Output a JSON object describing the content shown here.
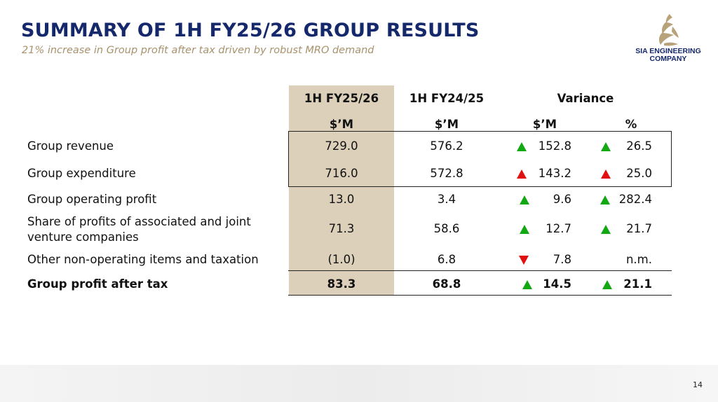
{
  "header": {
    "title": "SUMMARY OF 1H FY25/26 GROUP RESULTS",
    "subtitle": "21% increase in Group profit after tax driven by robust MRO demand"
  },
  "logo": {
    "text_line1": "SIA ENGINEERING",
    "text_line2": "COMPANY",
    "brand_color": "#14286b",
    "mark_color": "#b8a27a"
  },
  "table": {
    "columns": {
      "current": "1H FY25/26",
      "prior": "1H FY24/25",
      "variance": "Variance"
    },
    "units": {
      "current": "$’M",
      "prior": "$’M",
      "var_amount": "$’M",
      "var_pct": "%"
    },
    "rows": [
      {
        "label": "Group revenue",
        "current": "729.0",
        "prior": "576.2",
        "var_amount": "152.8",
        "var_pct": "26.5",
        "amount_trend": "up-green",
        "pct_trend": "up-green"
      },
      {
        "label": "Group expenditure",
        "current": "716.0",
        "prior": "572.8",
        "var_amount": "143.2",
        "var_pct": "25.0",
        "amount_trend": "up-red",
        "pct_trend": "up-red"
      },
      {
        "label": "Group operating profit",
        "current": "13.0",
        "prior": "3.4",
        "var_amount": "9.6",
        "var_pct": "282.4",
        "amount_trend": "up-green",
        "pct_trend": "up-green"
      },
      {
        "label": "Share of profits of associated and joint venture companies",
        "current": "71.3",
        "prior": "58.6",
        "var_amount": "12.7",
        "var_pct": "21.7",
        "amount_trend": "up-green",
        "pct_trend": "up-green"
      },
      {
        "label": "Other non-operating items and taxation",
        "current": "(1.0)",
        "prior": "6.8",
        "var_amount": "7.8",
        "var_pct": "n.m.",
        "amount_trend": "down-red",
        "pct_trend": "none"
      },
      {
        "label": "Group profit after tax",
        "current": "83.3",
        "prior": "68.8",
        "var_amount": "14.5",
        "var_pct": "21.1",
        "amount_trend": "up-green",
        "pct_trend": "up-green"
      }
    ],
    "colors": {
      "highlight_column": "#ddd0bb",
      "increase_good": "#12a812",
      "increase_bad": "#e01010",
      "decrease_bad": "#e01010"
    }
  },
  "footer": {
    "page_number": "14"
  }
}
